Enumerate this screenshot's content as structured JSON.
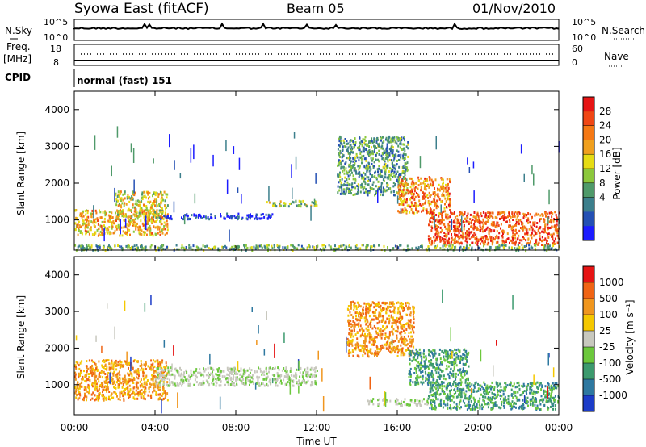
{
  "header": {
    "title": "Syowa East (fitACF)",
    "beam": "Beam 05",
    "date": "01/Nov/2010"
  },
  "status_panels": {
    "nsky_label": "N.Sky",
    "nsky_ticks": [
      "10^5",
      "10^0"
    ],
    "nsearch_label": "N.Search",
    "nsearch_ticks": [
      "10^5",
      "10^0"
    ],
    "freq_label": "Freq.",
    "freq_unit": "[MHz]",
    "freq_ticks": [
      "18",
      "8"
    ],
    "nave_label": "Nave",
    "nave_ticks": [
      "60",
      "0"
    ],
    "cpid_label": "CPID",
    "cpid_value": "normal (fast) 151"
  },
  "chart_data": [
    {
      "type": "heatmap",
      "name": "power",
      "ylabel": "Slant Range [km]",
      "ylim": [
        180,
        4500
      ],
      "yticks": [
        "4000",
        "3000",
        "2000",
        "1000"
      ],
      "xlim": [
        0,
        24
      ],
      "colorbar": {
        "label": "Power [dB]",
        "ticks": [
          "28",
          "24",
          "20",
          "16",
          "12",
          "8",
          "4"
        ],
        "colors": [
          "#1c1cff",
          "#2450b4",
          "#3c7f8c",
          "#4f9a6a",
          "#8cc83c",
          "#e6dc14",
          "#f0a01e",
          "#f57814",
          "#f04614",
          "#e61414"
        ]
      },
      "regions": [
        {
          "t0": 0.0,
          "t1": 4.6,
          "r0": 600,
          "r1": 1300,
          "level": 0.65
        },
        {
          "t0": 2.0,
          "t1": 4.6,
          "r0": 1100,
          "r1": 1800,
          "level": 0.55
        },
        {
          "t0": 4.0,
          "t1": 9.8,
          "r0": 1050,
          "r1": 1200,
          "level": 0.05
        },
        {
          "t0": 9.5,
          "t1": 12.0,
          "r0": 1400,
          "r1": 1550,
          "level": 0.45
        },
        {
          "t0": 13.0,
          "t1": 16.5,
          "r0": 1700,
          "r1": 3300,
          "level": 0.3
        },
        {
          "t0": 16.0,
          "t1": 18.6,
          "r0": 1200,
          "r1": 2200,
          "level": 0.75
        },
        {
          "t0": 17.5,
          "t1": 24.0,
          "r0": 350,
          "r1": 1250,
          "level": 0.85
        },
        {
          "t0": 0.0,
          "t1": 24.0,
          "r0": 200,
          "r1": 350,
          "level": 0.35
        }
      ]
    },
    {
      "type": "heatmap",
      "name": "velocity",
      "ylabel": "Slant Range [km]",
      "ylim": [
        180,
        4500
      ],
      "yticks": [
        "4000",
        "3000",
        "2000",
        "1000"
      ],
      "xlim": [
        0,
        24
      ],
      "xticks": [
        "00:00",
        "04:00",
        "08:00",
        "12:00",
        "16:00",
        "20:00",
        "00:00"
      ],
      "xlabel": "Time UT",
      "colorbar": {
        "label": "Velocity [m s⁻¹]",
        "ticks": [
          "1000",
          "500",
          "100",
          "25",
          "-25",
          "-100",
          "-500",
          "-1000"
        ],
        "colors": [
          "#1c3cc8",
          "#2e78a0",
          "#3c9a6e",
          "#6cc83c",
          "#c8c8be",
          "#f5c800",
          "#f0961e",
          "#f06414",
          "#e61414"
        ]
      },
      "regions": [
        {
          "t0": 0.0,
          "t1": 4.6,
          "r0": 600,
          "r1": 1700,
          "level": "orange"
        },
        {
          "t0": 4.0,
          "t1": 12.0,
          "r0": 1000,
          "r1": 1500,
          "level": "grey"
        },
        {
          "t0": 13.5,
          "t1": 16.8,
          "r0": 1800,
          "r1": 3300,
          "level": "orange"
        },
        {
          "t0": 16.5,
          "t1": 19.5,
          "r0": 1000,
          "r1": 2000,
          "level": "green"
        },
        {
          "t0": 17.5,
          "t1": 24.0,
          "r0": 350,
          "r1": 1100,
          "level": "green"
        },
        {
          "t0": 14.5,
          "t1": 17.5,
          "r0": 450,
          "r1": 650,
          "level": "grey"
        }
      ]
    }
  ]
}
